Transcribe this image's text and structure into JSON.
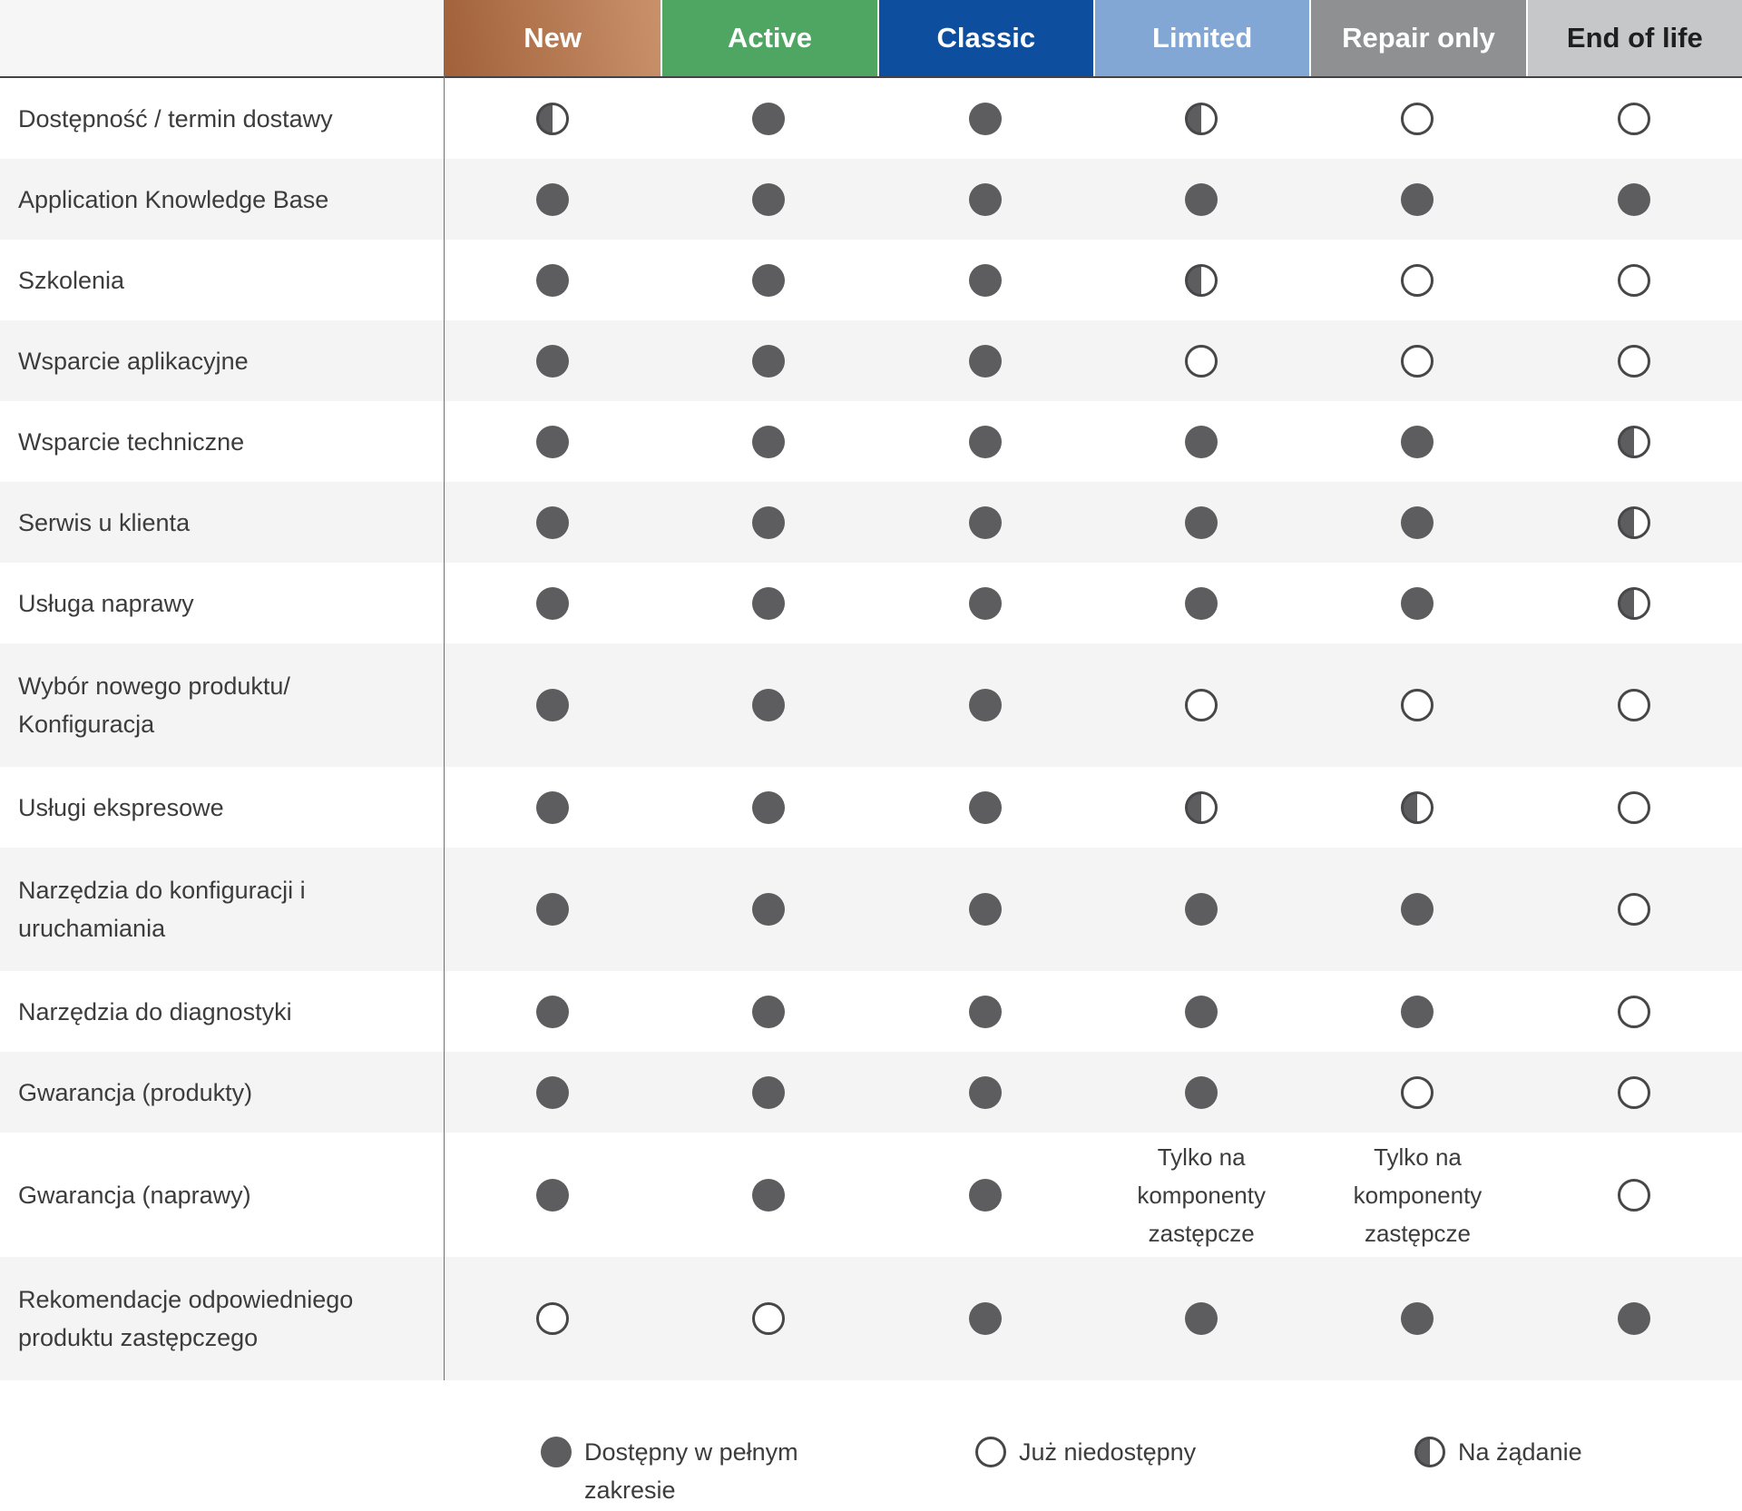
{
  "colors": {
    "new_gradient_from": "#a1613a",
    "new_gradient_to": "#c9916a",
    "active_bg": "#4fa662",
    "classic_bg": "#0d4e9f",
    "limited_bg": "#82a7d4",
    "repair_bg": "#8f9091",
    "end_of_life_bg": "#c6c7c8",
    "dot_fill": "#5d5d5f",
    "dot_outline": "#47474a",
    "row_shade": "#f4f4f4",
    "header_text_light": "#ffffff",
    "header_text_dark": "#1f1f1f"
  },
  "header": {
    "columns": [
      {
        "label": "New",
        "color_from": "#a1613a",
        "color_to": "#c9916a",
        "text_color": "#ffffff"
      },
      {
        "label": "Active",
        "color": "#4fa662",
        "text_color": "#ffffff"
      },
      {
        "label": "Classic",
        "color": "#0d4e9f",
        "text_color": "#ffffff"
      },
      {
        "label": "Limited",
        "color": "#82a7d4",
        "text_color": "#ffffff"
      },
      {
        "label": "Repair only",
        "color": "#8f9091",
        "text_color": "#ffffff"
      },
      {
        "label": "End of life",
        "color": "#c6c7c8",
        "text_color": "#1f1f1f"
      }
    ]
  },
  "table": {
    "symbol_meanings": {
      "full": "Dostępny w pełnym zakresie",
      "empty": "Już niedostępny",
      "half": "Na żądanie"
    },
    "rows": [
      {
        "label": "Dostępność / termin dostawy",
        "cells": [
          "half",
          "full",
          "full",
          "half",
          "empty",
          "empty"
        ]
      },
      {
        "label": "Application Knowledge Base",
        "cells": [
          "full",
          "full",
          "full",
          "full",
          "full",
          "full"
        ]
      },
      {
        "label": "Szkolenia",
        "cells": [
          "full",
          "full",
          "full",
          "half",
          "empty",
          "empty"
        ]
      },
      {
        "label": "Wsparcie aplikacyjne",
        "cells": [
          "full",
          "full",
          "full",
          "empty",
          "empty",
          "empty"
        ]
      },
      {
        "label": "Wsparcie techniczne",
        "cells": [
          "full",
          "full",
          "full",
          "full",
          "full",
          "half"
        ]
      },
      {
        "label": "Serwis u klienta",
        "cells": [
          "full",
          "full",
          "full",
          "full",
          "full",
          "half"
        ]
      },
      {
        "label": "Usługa naprawy",
        "cells": [
          "full",
          "full",
          "full",
          "full",
          "full",
          "half"
        ]
      },
      {
        "label": "Wybór nowego produktu/\nKonfiguracja",
        "cells": [
          "full",
          "full",
          "full",
          "empty",
          "empty",
          "empty"
        ]
      },
      {
        "label": "Usługi ekspresowe",
        "cells": [
          "full",
          "full",
          "full",
          "half",
          "half",
          "empty"
        ]
      },
      {
        "label": "Narzędzia do konfiguracji i\nuruchamiania",
        "cells": [
          "full",
          "full",
          "full",
          "full",
          "full",
          "empty"
        ]
      },
      {
        "label": "Narzędzia do diagnostyki",
        "cells": [
          "full",
          "full",
          "full",
          "full",
          "full",
          "empty"
        ]
      },
      {
        "label": "Gwarancja (produkty)",
        "cells": [
          "full",
          "full",
          "full",
          "full",
          "empty",
          "empty"
        ]
      },
      {
        "label": "Gwarancja (naprawy)",
        "cells": [
          "full",
          "full",
          "full",
          {
            "text": "Tylko na\nkomponenty\nzastępcze"
          },
          {
            "text": "Tylko na\nkomponenty\nzastępcze"
          },
          "empty"
        ]
      },
      {
        "label": "Rekomendacje odpowiedniego\nproduktu zastępczego",
        "cells": [
          "empty",
          "empty",
          "full",
          "full",
          "full",
          "full"
        ]
      }
    ]
  },
  "legend": {
    "items": [
      {
        "symbol": "full",
        "label": "Dostępny w pełnym\nzakresie"
      },
      {
        "symbol": "empty",
        "label": "Już niedostępny"
      },
      {
        "symbol": "half",
        "label": "Na żądanie"
      }
    ]
  }
}
